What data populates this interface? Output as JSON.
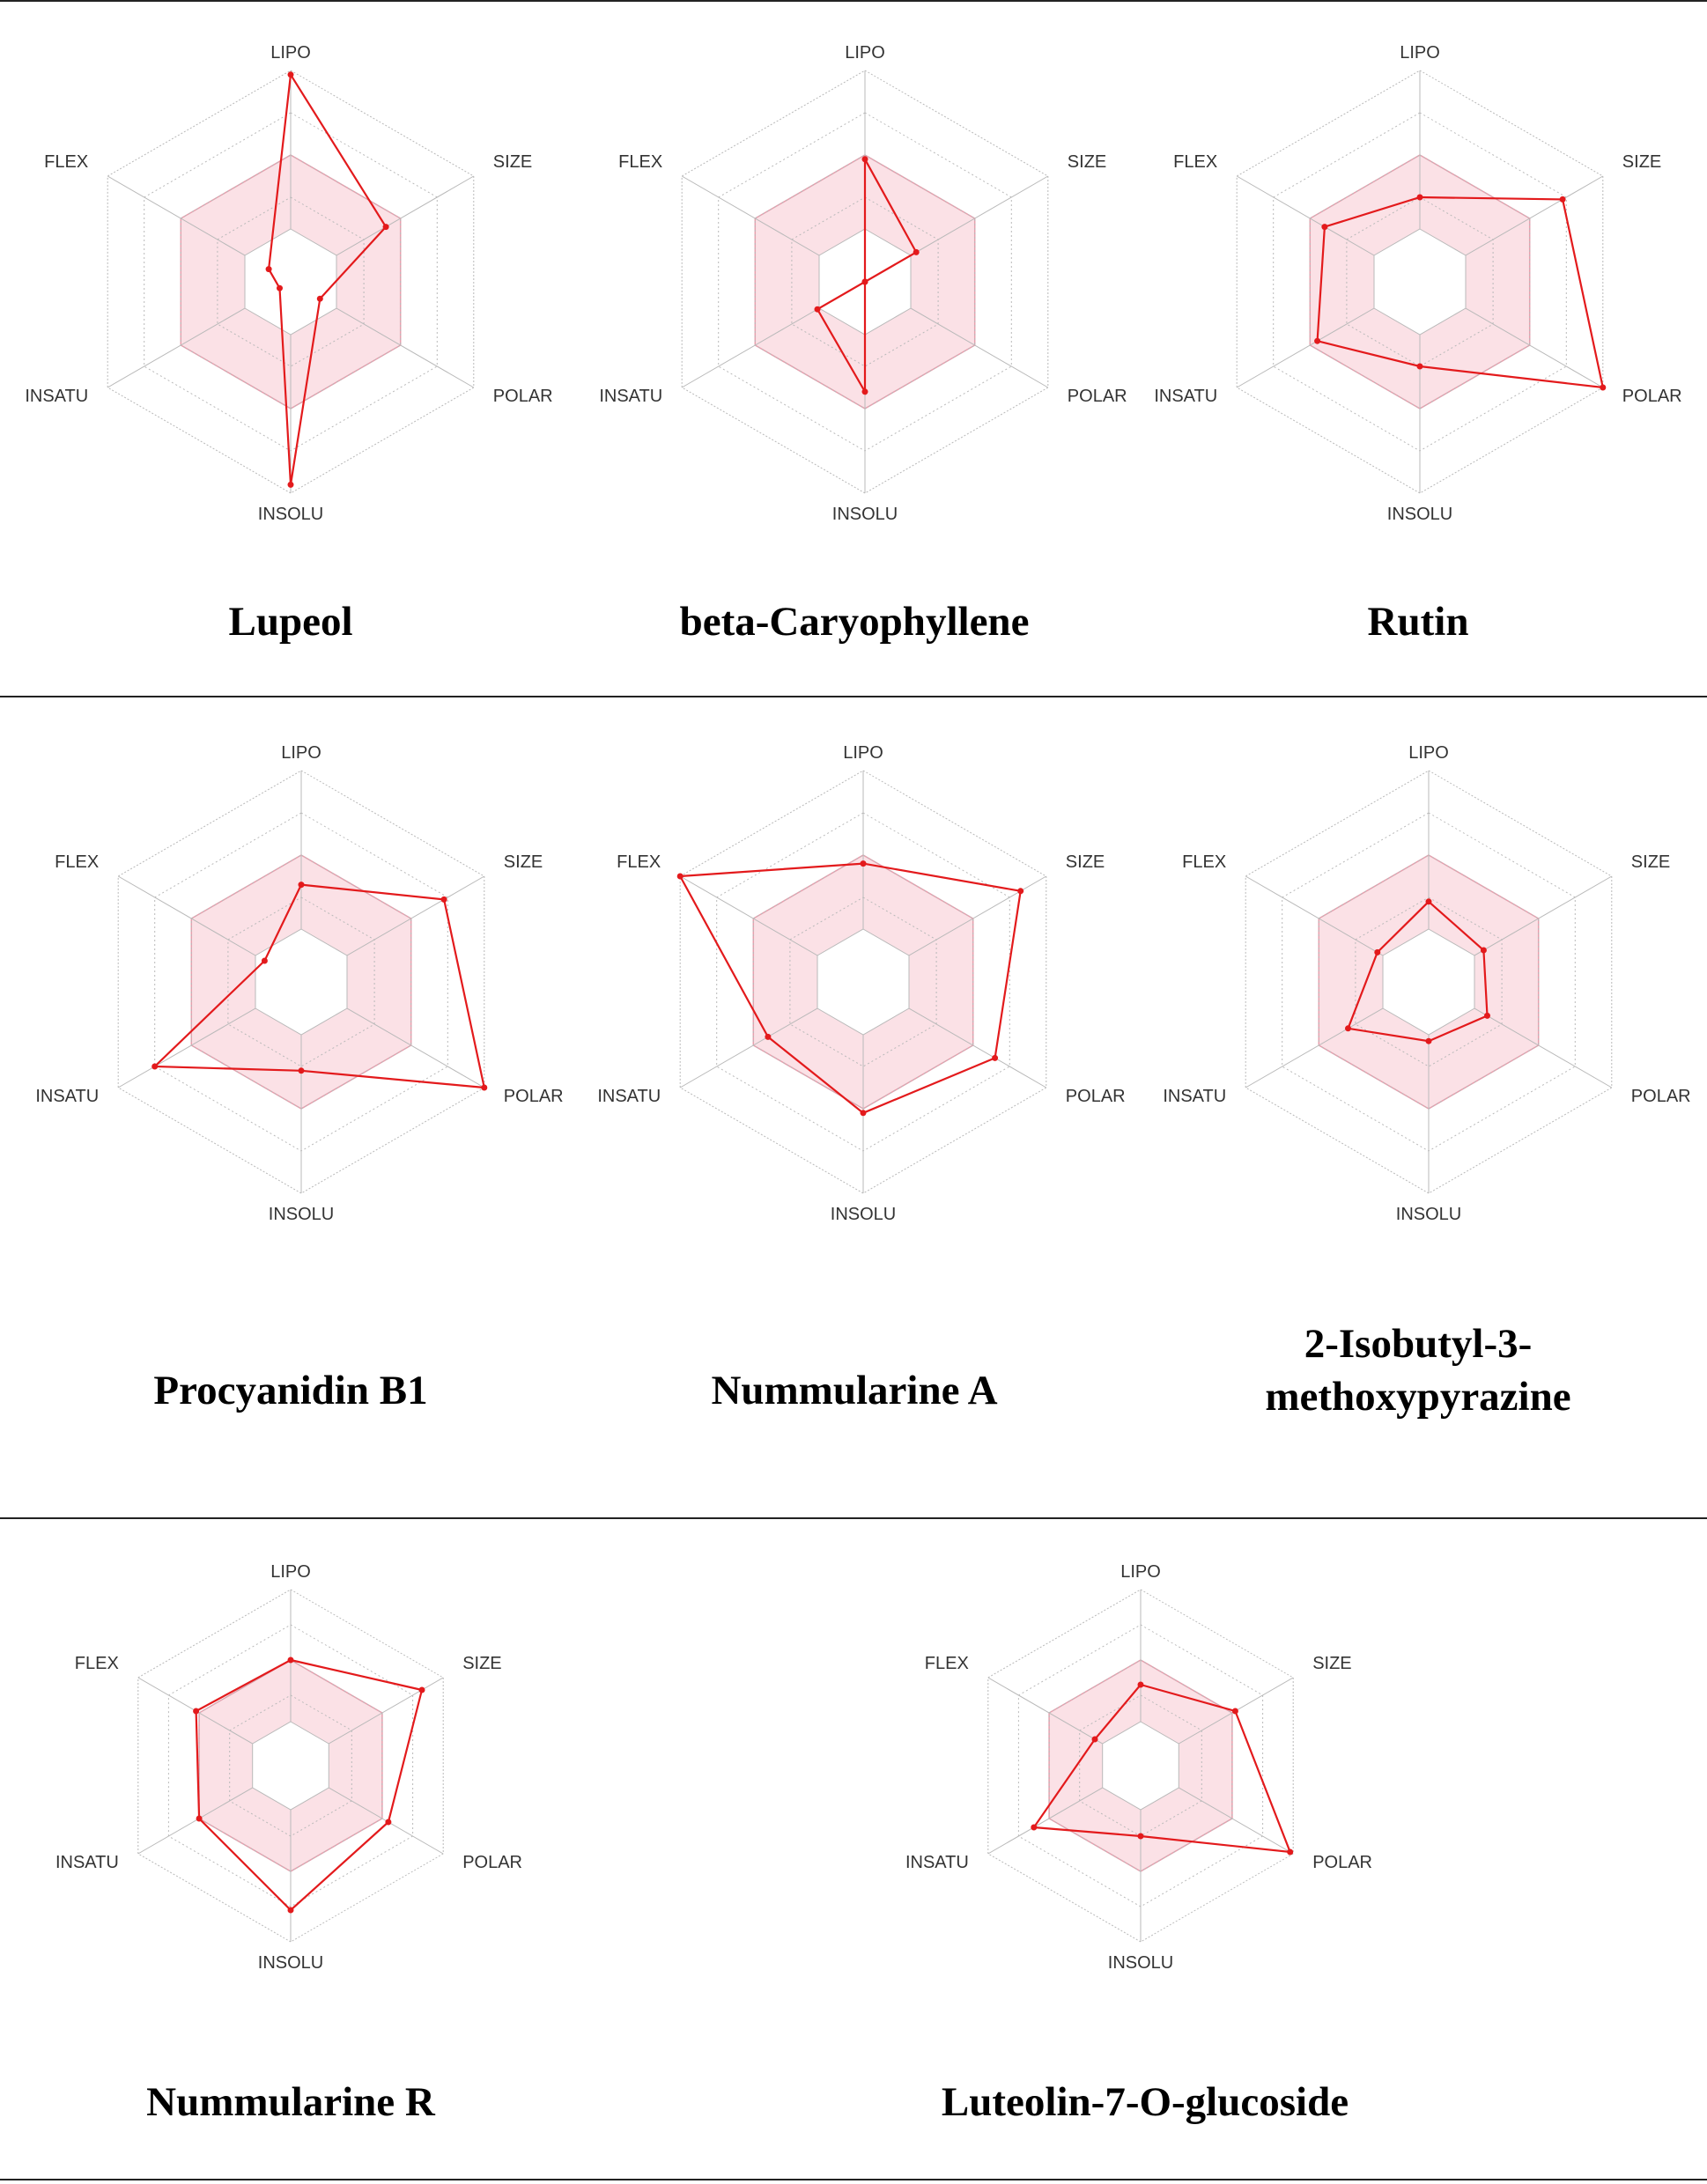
{
  "figure": {
    "axes": [
      "LIPO",
      "SIZE",
      "POLAR",
      "INSOLU",
      "INSATU",
      "FLEX"
    ],
    "range": [
      0,
      1
    ],
    "optimal_range": [
      0.25,
      0.6
    ],
    "colors": {
      "series_line": "#e31a1c",
      "optimal_fill": "#f8c8d2",
      "optimal_stroke": "#e6a0ae",
      "grid": "#b9b9b9",
      "rule": "#222222"
    }
  },
  "chart_data": [
    {
      "type": "radar",
      "title": "Lupeol",
      "axes": [
        "LIPO",
        "SIZE",
        "POLAR",
        "INSOLU",
        "INSATU",
        "FLEX"
      ],
      "values": [
        0.98,
        0.52,
        0.16,
        0.96,
        0.06,
        0.12
      ]
    },
    {
      "type": "radar",
      "title": "beta-Caryophyllene",
      "axes": [
        "LIPO",
        "SIZE",
        "POLAR",
        "INSOLU",
        "INSATU",
        "FLEX"
      ],
      "values": [
        0.58,
        0.28,
        0.0,
        0.52,
        0.26,
        0.0
      ]
    },
    {
      "type": "radar",
      "title": "Rutin",
      "axes": [
        "LIPO",
        "SIZE",
        "POLAR",
        "INSOLU",
        "INSATU",
        "FLEX"
      ],
      "values": [
        0.4,
        0.78,
        1.0,
        0.4,
        0.56,
        0.52
      ]
    },
    {
      "type": "radar",
      "title": "Procyanidin B1",
      "axes": [
        "LIPO",
        "SIZE",
        "POLAR",
        "INSOLU",
        "INSATU",
        "FLEX"
      ],
      "values": [
        0.46,
        0.78,
        1.0,
        0.42,
        0.8,
        0.2
      ]
    },
    {
      "type": "radar",
      "title": "Nummularine A",
      "axes": [
        "LIPO",
        "SIZE",
        "POLAR",
        "INSOLU",
        "INSATU",
        "FLEX"
      ],
      "values": [
        0.56,
        0.86,
        0.72,
        0.62,
        0.52,
        1.0
      ]
    },
    {
      "type": "radar",
      "title": "2-Isobutyl-3-methoxypyrazine",
      "axes": [
        "LIPO",
        "SIZE",
        "POLAR",
        "INSOLU",
        "INSATU",
        "FLEX"
      ],
      "title_lines": [
        "2-Isobutyl-3-",
        "methoxypyrazine"
      ],
      "values": [
        0.38,
        0.3,
        0.32,
        0.28,
        0.44,
        0.28
      ]
    },
    {
      "type": "radar",
      "title": "Nummularine R",
      "axes": [
        "LIPO",
        "SIZE",
        "POLAR",
        "INSOLU",
        "INSATU",
        "FLEX"
      ],
      "values": [
        0.6,
        0.86,
        0.64,
        0.82,
        0.6,
        0.62
      ]
    },
    {
      "type": "radar",
      "title": "Luteolin-7-O-glucoside",
      "axes": [
        "LIPO",
        "SIZE",
        "POLAR",
        "INSOLU",
        "INSATU",
        "FLEX"
      ],
      "values": [
        0.46,
        0.62,
        0.98,
        0.4,
        0.7,
        0.3
      ]
    }
  ]
}
